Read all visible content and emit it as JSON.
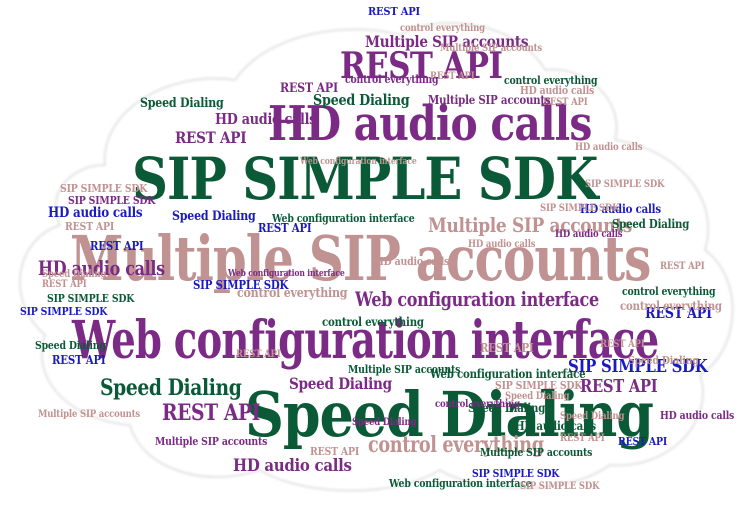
{
  "phrases": {
    "sdk": "SIP SIMPLE SDK",
    "hd": "HD audio calls",
    "accounts": "Multiple SIP accounts",
    "web": "Web configuration interface",
    "speed": "Speed Dialing",
    "rest": "REST API",
    "control": "control everything"
  },
  "colors": {
    "green": "#0b5a37",
    "purple": "#7b2a85",
    "rose": "#c09292",
    "blue": "#1a1ac0"
  }
}
